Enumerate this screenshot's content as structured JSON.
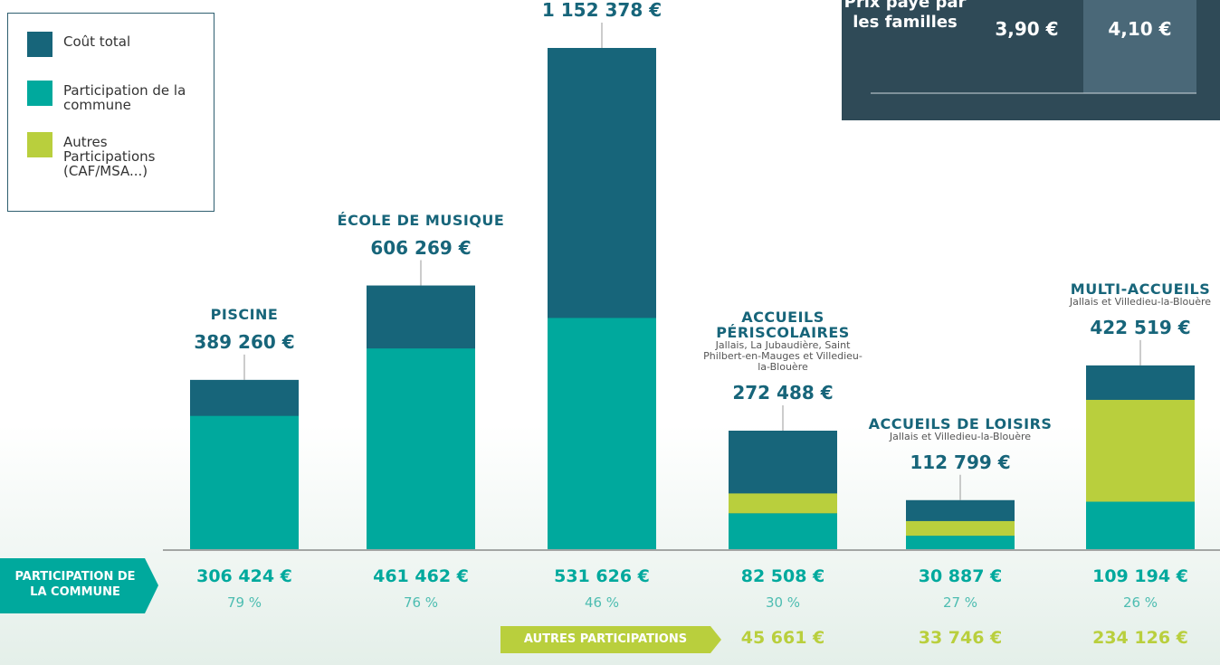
{
  "chart_data": {
    "type": "stacked-bar",
    "categories": [
      "PISCINE",
      "ÉCOLE DE MUSIQUE",
      null,
      "ACCUEILS PÉRISCOLAIRES",
      "ACCUEILS DE LOISIRS",
      "MULTI-ACCUEILS"
    ],
    "subtitles": [
      null,
      null,
      null,
      "Jallais, La Jubaudière, Saint Philbert-en-Mauges et Villedieu-la-Blouère",
      "Jallais et Villedieu-la-Blouère",
      "Jallais et Villedieu-la-Blouère"
    ],
    "series": [
      {
        "name": "Coût total",
        "color": "#17657a",
        "values": [
          389260,
          606269,
          1152378,
          272488,
          112799,
          422519
        ],
        "value_labels": [
          "389 260 €",
          "606 269 €",
          "1 152 378 €",
          "272 488 €",
          "112 799 €",
          "422 519 €"
        ]
      },
      {
        "name": "Participation de la commune",
        "color": "#00a99d",
        "values": [
          306424,
          461462,
          531626,
          82508,
          30887,
          109194
        ],
        "value_labels": [
          "306 424 €",
          "461 462 €",
          "531 626 €",
          "82 508 €",
          "30 887 €",
          "109 194 €"
        ]
      },
      {
        "name": "Autres Participations (CAF/MSA...)",
        "color": "#b9cf3d",
        "values": [
          null,
          null,
          null,
          45661,
          33746,
          234126
        ],
        "value_labels": [
          null,
          null,
          null,
          "45 661 €",
          "33 746 €",
          "234 126 €"
        ]
      }
    ],
    "commune_percent": {
      "values": [
        79,
        76,
        46,
        30,
        27,
        26
      ],
      "value_labels": [
        "79 %",
        "76 %",
        "46 %",
        "30 %",
        "27 %",
        "26 %"
      ]
    },
    "row_labels": [
      "PARTICIPATION DE LA COMMUNE",
      "AUTRES PARTICIPATIONS"
    ],
    "price_table": {
      "row_label": "Prix payé par les familles",
      "cells": [
        "3,90 €",
        "4,10 €"
      ]
    }
  }
}
